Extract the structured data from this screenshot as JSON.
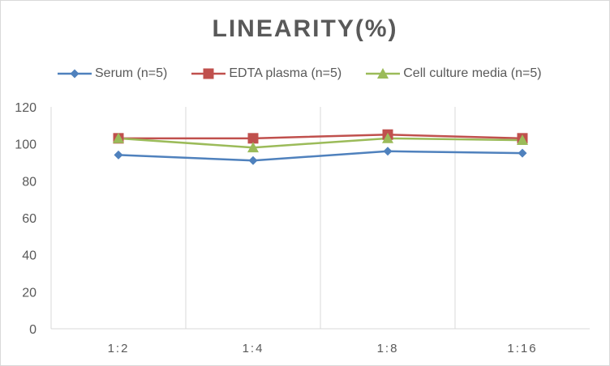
{
  "chart_data": {
    "type": "line",
    "title": "LINEARITY(%)",
    "xlabel": "",
    "ylabel": "",
    "categories": [
      "1:2",
      "1:4",
      "1:8",
      "1:16"
    ],
    "ylim": [
      0,
      120
    ],
    "yticks": [
      0,
      20,
      40,
      60,
      80,
      100,
      120
    ],
    "grid": "vertical",
    "legend_position": "top",
    "series": [
      {
        "name": "Serum (n=5)",
        "color": "#4f81bd",
        "marker": "diamond",
        "values": [
          94,
          91,
          96,
          95
        ]
      },
      {
        "name": "EDTA plasma (n=5)",
        "color": "#c0504d",
        "marker": "square",
        "values": [
          103,
          103,
          105,
          103
        ]
      },
      {
        "name": "Cell culture media (n=5)",
        "color": "#9bbb59",
        "marker": "triangle",
        "values": [
          103,
          98,
          103,
          102
        ]
      }
    ]
  }
}
